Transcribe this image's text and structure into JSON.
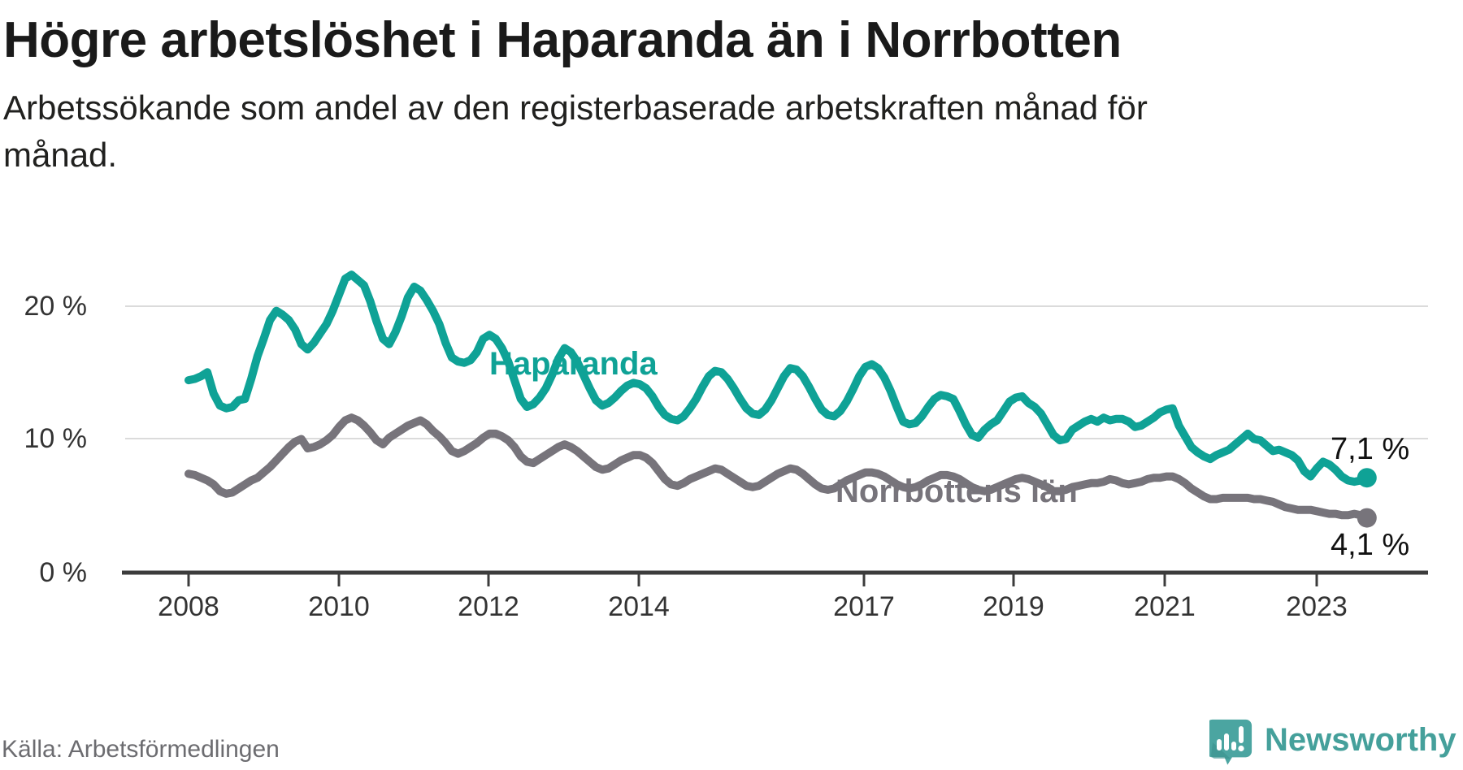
{
  "header": {
    "title": "Högre arbetslöshet i Haparanda än i Norrbotten",
    "subtitle": "Arbetssökande som andel av den registerbaserade arbetskraften månad för månad."
  },
  "chart_data": {
    "type": "line",
    "title": "Högre arbetslöshet i Haparanda än i Norrbotten",
    "x_axis": {
      "start": "2008-01",
      "end": "2023-09",
      "tick_labels": [
        "2008",
        "2010",
        "2012",
        "2014",
        "2017",
        "2019",
        "2021",
        "2023"
      ]
    },
    "y_axis": {
      "unit": "%",
      "min": 0,
      "max": 22.5,
      "tick_labels": [
        "20 %",
        "10 %",
        "0 %"
      ],
      "grid": "horizontal at 10 and 20"
    },
    "legend_position": "inline labels on lines",
    "series": [
      {
        "name": "Haparanda",
        "color": "#0FA296",
        "end_label": "7,1 %",
        "end_value": 7.1,
        "values": [
          14.4,
          14.5,
          14.7,
          15.0,
          13.4,
          12.5,
          12.3,
          12.4,
          12.9,
          13.0,
          14.5,
          16.2,
          17.5,
          18.9,
          19.6,
          19.3,
          18.9,
          18.2,
          17.1,
          16.7,
          17.2,
          17.9,
          18.6,
          19.6,
          20.8,
          22.0,
          22.3,
          21.9,
          21.5,
          20.3,
          18.8,
          17.5,
          17.1,
          18.0,
          19.2,
          20.6,
          21.4,
          21.1,
          20.4,
          19.6,
          18.6,
          17.2,
          16.1,
          15.8,
          15.7,
          15.9,
          16.5,
          17.5,
          17.8,
          17.5,
          16.8,
          15.8,
          14.4,
          13.0,
          12.4,
          12.6,
          13.1,
          13.8,
          14.8,
          16.0,
          16.8,
          16.5,
          15.8,
          14.8,
          13.8,
          12.9,
          12.5,
          12.7,
          13.1,
          13.6,
          14.0,
          14.2,
          14.1,
          13.8,
          13.2,
          12.4,
          11.8,
          11.5,
          11.4,
          11.7,
          12.3,
          13.0,
          13.9,
          14.7,
          15.1,
          15.0,
          14.5,
          13.8,
          13.0,
          12.3,
          11.9,
          11.8,
          12.2,
          12.9,
          13.8,
          14.7,
          15.3,
          15.2,
          14.7,
          13.9,
          13.0,
          12.2,
          11.8,
          11.7,
          12.1,
          12.8,
          13.7,
          14.7,
          15.4,
          15.6,
          15.3,
          14.6,
          13.6,
          12.4,
          11.3,
          11.1,
          11.2,
          11.7,
          12.4,
          13.0,
          13.3,
          13.2,
          13.0,
          12.1,
          11.1,
          10.3,
          10.1,
          10.7,
          11.1,
          11.4,
          12.1,
          12.8,
          13.1,
          13.2,
          12.7,
          12.4,
          11.9,
          11.1,
          10.3,
          9.9,
          10.0,
          10.7,
          11.0,
          11.3,
          11.5,
          11.3,
          11.6,
          11.4,
          11.5,
          11.5,
          11.3,
          10.9,
          11.0,
          11.3,
          11.6,
          12.0,
          12.2,
          12.3,
          11.0,
          10.2,
          9.4,
          9.0,
          8.7,
          8.5,
          8.8,
          9.0,
          9.2,
          9.6,
          10.0,
          10.4,
          10.0,
          9.9,
          9.5,
          9.1,
          9.2,
          9.0,
          8.8,
          8.4,
          7.6,
          7.2,
          7.8,
          8.3,
          8.1,
          7.7,
          7.2,
          6.9,
          6.8,
          6.9,
          7.1
        ]
      },
      {
        "name": "Norrbottens län",
        "color": "#77747B",
        "end_label": "4,1 %",
        "end_value": 4.1,
        "values": [
          7.4,
          7.3,
          7.1,
          6.9,
          6.6,
          6.1,
          5.9,
          6.0,
          6.3,
          6.6,
          6.9,
          7.1,
          7.5,
          7.9,
          8.4,
          8.9,
          9.4,
          9.8,
          10.0,
          9.3,
          9.4,
          9.6,
          9.9,
          10.3,
          10.9,
          11.4,
          11.6,
          11.4,
          11.0,
          10.5,
          9.9,
          9.6,
          10.1,
          10.4,
          10.7,
          11.0,
          11.2,
          11.4,
          11.1,
          10.6,
          10.2,
          9.7,
          9.1,
          8.9,
          9.1,
          9.4,
          9.7,
          10.1,
          10.4,
          10.4,
          10.2,
          9.9,
          9.4,
          8.7,
          8.3,
          8.2,
          8.5,
          8.8,
          9.1,
          9.4,
          9.6,
          9.4,
          9.1,
          8.7,
          8.3,
          7.9,
          7.7,
          7.8,
          8.1,
          8.4,
          8.6,
          8.8,
          8.8,
          8.6,
          8.2,
          7.6,
          7.0,
          6.6,
          6.5,
          6.7,
          7.0,
          7.2,
          7.4,
          7.6,
          7.8,
          7.7,
          7.4,
          7.1,
          6.8,
          6.5,
          6.4,
          6.5,
          6.8,
          7.1,
          7.4,
          7.6,
          7.8,
          7.7,
          7.4,
          7.0,
          6.6,
          6.3,
          6.2,
          6.3,
          6.6,
          6.9,
          7.1,
          7.3,
          7.5,
          7.5,
          7.4,
          7.2,
          6.9,
          6.6,
          6.4,
          6.3,
          6.4,
          6.6,
          6.9,
          7.1,
          7.3,
          7.3,
          7.2,
          7.0,
          6.7,
          6.4,
          6.2,
          6.1,
          6.2,
          6.4,
          6.6,
          6.8,
          7.0,
          7.1,
          7.0,
          6.8,
          6.6,
          6.4,
          6.1,
          6.1,
          6.2,
          6.4,
          6.5,
          6.6,
          6.7,
          6.7,
          6.8,
          7.0,
          6.9,
          6.7,
          6.6,
          6.7,
          6.8,
          7.0,
          7.1,
          7.1,
          7.2,
          7.2,
          7.0,
          6.7,
          6.3,
          6.0,
          5.7,
          5.5,
          5.5,
          5.6,
          5.6,
          5.6,
          5.6,
          5.6,
          5.5,
          5.5,
          5.4,
          5.3,
          5.1,
          4.9,
          4.8,
          4.7,
          4.7,
          4.7,
          4.6,
          4.5,
          4.4,
          4.4,
          4.3,
          4.3,
          4.4,
          4.3,
          4.1
        ]
      }
    ]
  },
  "footer": {
    "source": "Källa: Arbetsförmedlingen",
    "brand": "Newsworthy",
    "brand_color": "#45A09B"
  }
}
